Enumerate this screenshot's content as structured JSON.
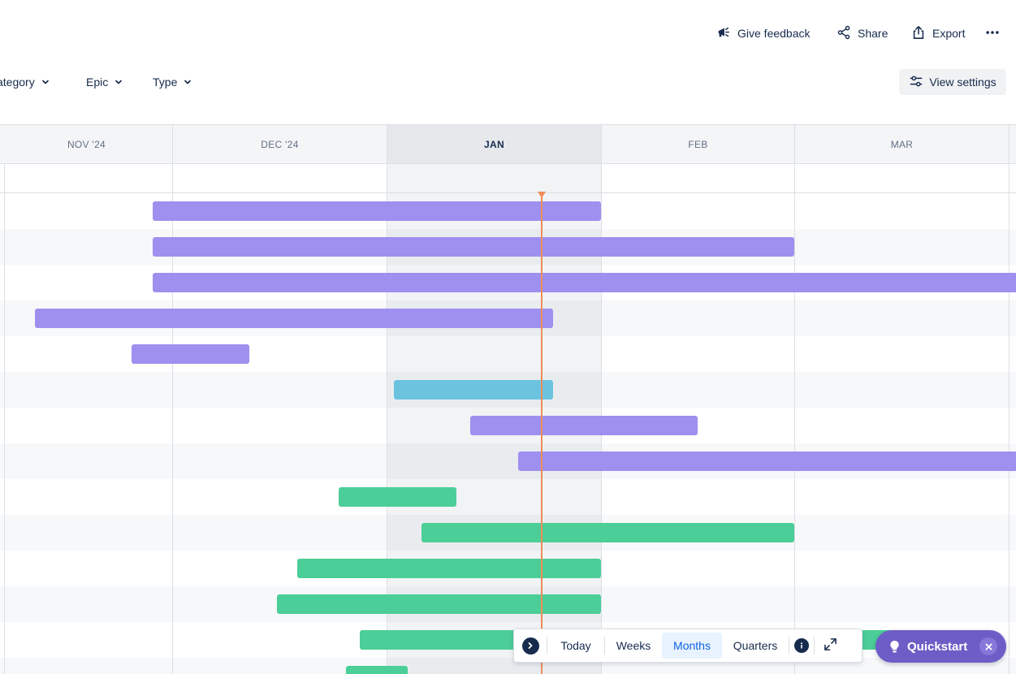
{
  "header": {
    "actions": {
      "feedback": "Give feedback",
      "share": "Share",
      "export": "Export"
    }
  },
  "filters": {
    "category": "ategory",
    "epic": "Epic",
    "type": "Type"
  },
  "view_settings": "View settings",
  "timeline": {
    "months": [
      "NOV '24",
      "DEC '24",
      "JAN",
      "FEB",
      "MAR"
    ],
    "current_month": "JAN",
    "colors": {
      "epic": "#9f8fef",
      "story": "#6cc3e0",
      "task": "#4bce97",
      "today": "#f18d58"
    },
    "bars": [
      {
        "row": 0,
        "color": "epic"
      },
      {
        "row": 1,
        "color": "epic"
      },
      {
        "row": 2,
        "color": "epic"
      },
      {
        "row": 3,
        "color": "epic"
      },
      {
        "row": 4,
        "color": "epic"
      },
      {
        "row": 5,
        "color": "story"
      },
      {
        "row": 6,
        "color": "epic"
      },
      {
        "row": 7,
        "color": "epic"
      },
      {
        "row": 8,
        "color": "task"
      },
      {
        "row": 9,
        "color": "task"
      },
      {
        "row": 10,
        "color": "task"
      },
      {
        "row": 11,
        "color": "task"
      },
      {
        "row": 12,
        "color": "task"
      },
      {
        "row": 12,
        "color": "task"
      },
      {
        "row": 13,
        "color": "task"
      }
    ]
  },
  "zoom": {
    "today": "Today",
    "weeks": "Weeks",
    "months": "Months",
    "quarters": "Quarters",
    "selected": "Months"
  },
  "quickstart": {
    "label": "Quickstart"
  }
}
